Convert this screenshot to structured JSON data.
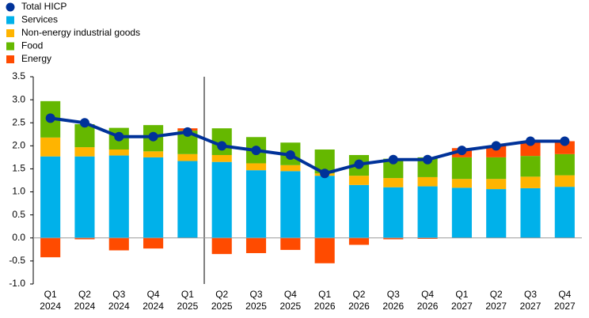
{
  "chart_data": {
    "type": "bar",
    "stacked": true,
    "categories": [
      [
        "Q1",
        "2024"
      ],
      [
        "Q2",
        "2024"
      ],
      [
        "Q3",
        "2024"
      ],
      [
        "Q4",
        "2024"
      ],
      [
        "Q1",
        "2025"
      ],
      [
        "Q2",
        "2025"
      ],
      [
        "Q3",
        "2025"
      ],
      [
        "Q4",
        "2025"
      ],
      [
        "Q1",
        "2026"
      ],
      [
        "Q2",
        "2026"
      ],
      [
        "Q3",
        "2026"
      ],
      [
        "Q4",
        "2026"
      ],
      [
        "Q1",
        "2027"
      ],
      [
        "Q2",
        "2027"
      ],
      [
        "Q3",
        "2027"
      ],
      [
        "Q4",
        "2027"
      ]
    ],
    "series": [
      {
        "name": "Total HICP",
        "type": "line",
        "color": "#003299",
        "values": [
          2.6,
          2.5,
          2.2,
          2.2,
          2.3,
          2.0,
          1.9,
          1.8,
          1.4,
          1.6,
          1.7,
          1.7,
          1.9,
          2.0,
          2.1,
          2.1
        ]
      },
      {
        "name": "Services",
        "type": "bar",
        "color": "#00b1ea",
        "values": [
          1.77,
          1.77,
          1.79,
          1.75,
          1.67,
          1.65,
          1.47,
          1.45,
          1.35,
          1.15,
          1.1,
          1.12,
          1.09,
          1.06,
          1.08,
          1.11
        ]
      },
      {
        "name": "Non-energy industrial goods",
        "type": "bar",
        "color": "#ffb400",
        "values": [
          0.41,
          0.2,
          0.13,
          0.13,
          0.15,
          0.15,
          0.15,
          0.13,
          0.05,
          0.2,
          0.2,
          0.2,
          0.19,
          0.22,
          0.25,
          0.25
        ]
      },
      {
        "name": "Food",
        "type": "bar",
        "color": "#65b800",
        "values": [
          0.79,
          0.5,
          0.47,
          0.57,
          0.51,
          0.58,
          0.57,
          0.49,
          0.52,
          0.45,
          0.42,
          0.43,
          0.47,
          0.47,
          0.45,
          0.46
        ]
      },
      {
        "name": "Energy",
        "type": "bar",
        "color": "#ff4b00",
        "values": [
          -0.42,
          -0.03,
          -0.27,
          -0.23,
          0.05,
          -0.35,
          -0.33,
          -0.26,
          -0.55,
          -0.15,
          -0.03,
          -0.02,
          0.2,
          0.25,
          0.29,
          0.28
        ]
      }
    ],
    "ylim": [
      -1.0,
      3.5
    ],
    "yticks": [
      {
        "value": -1.0,
        "label": "-1.0"
      },
      {
        "value": -0.5,
        "label": "-0.5"
      },
      {
        "value": 0.0,
        "label": "0.0"
      },
      {
        "value": 0.5,
        "label": "0.5"
      },
      {
        "value": 1.0,
        "label": "1.0"
      },
      {
        "value": 1.5,
        "label": "1.5"
      },
      {
        "value": 2.0,
        "label": "2.0"
      },
      {
        "value": 2.5,
        "label": "2.5"
      },
      {
        "value": 3.0,
        "label": "3.0"
      },
      {
        "value": 3.5,
        "label": "3.5"
      }
    ],
    "legend": "top-left"
  }
}
